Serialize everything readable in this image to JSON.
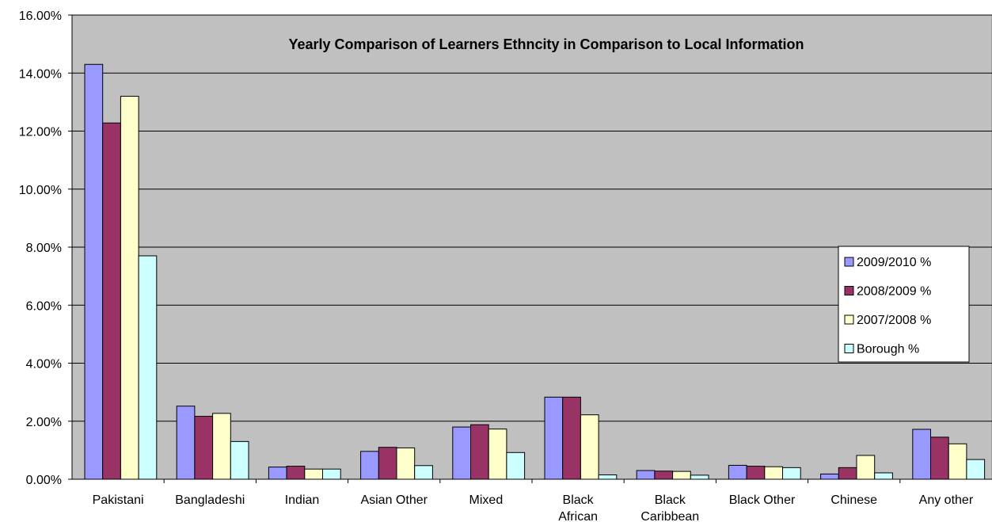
{
  "chart_data": {
    "type": "bar",
    "title": "Yearly Comparison of Learners Ethncity in Comparison to Local Information",
    "xlabel": "",
    "ylabel": "",
    "ylim": [
      0,
      16
    ],
    "y_ticks": [
      "0.00%",
      "2.00%",
      "4.00%",
      "6.00%",
      "8.00%",
      "10.00%",
      "12.00%",
      "14.00%",
      "16.00%"
    ],
    "grid": true,
    "legend_position": "right",
    "categories": [
      [
        "Pakistani"
      ],
      [
        "Bangladeshi"
      ],
      [
        "Indian"
      ],
      [
        "Asian Other"
      ],
      [
        "Mixed"
      ],
      [
        "Black",
        "African"
      ],
      [
        "Black",
        "Caribbean"
      ],
      [
        "Black Other"
      ],
      [
        "Chinese"
      ],
      [
        "Any other"
      ]
    ],
    "series": [
      {
        "name": "2009/2010 %",
        "color": "#9999ff",
        "values": [
          14.3,
          2.52,
          0.42,
          0.96,
          1.8,
          2.83,
          0.3,
          0.48,
          0.18,
          1.72
        ]
      },
      {
        "name": "2008/2009 %",
        "color": "#993366",
        "values": [
          12.28,
          2.17,
          0.45,
          1.1,
          1.88,
          2.83,
          0.28,
          0.45,
          0.4,
          1.45
        ]
      },
      {
        "name": "2007/2008 %",
        "color": "#ffffcc",
        "values": [
          13.2,
          2.27,
          0.35,
          1.08,
          1.73,
          2.22,
          0.27,
          0.43,
          0.82,
          1.22
        ]
      },
      {
        "name": "Borough %",
        "color": "#ccffff",
        "values": [
          7.7,
          1.3,
          0.35,
          0.47,
          0.92,
          0.15,
          0.14,
          0.4,
          0.22,
          0.68
        ]
      }
    ],
    "colors": {
      "plot_background": "#c0c0c0",
      "gridline": "#000000",
      "bar_stroke": "#000000"
    }
  }
}
